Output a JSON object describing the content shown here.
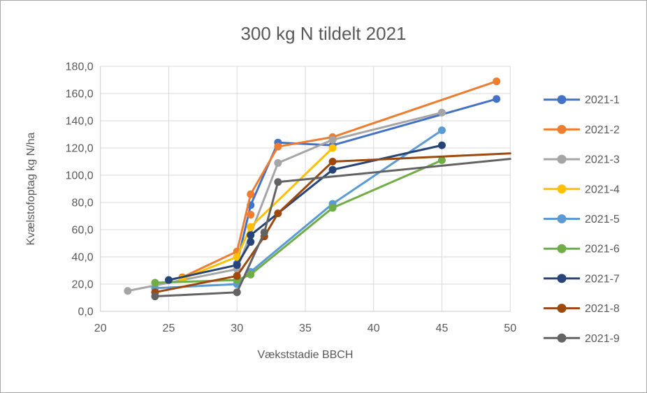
{
  "chart_data": {
    "type": "line",
    "title": "300 kg N tildelt 2021",
    "xlabel": "Vækststadie BBCH",
    "ylabel": "Kvælstofoptag kg N/ha",
    "xlim": [
      20,
      50
    ],
    "ylim": [
      0,
      180
    ],
    "x_ticks": [
      20,
      25,
      30,
      35,
      40,
      45,
      50
    ],
    "x_tick_labels": [
      "20",
      "25",
      "30",
      "35",
      "40",
      "45",
      "50"
    ],
    "y_ticks": [
      0,
      20,
      40,
      60,
      80,
      100,
      120,
      140,
      160,
      180
    ],
    "y_tick_labels": [
      "0,0",
      "20,0",
      "40,0",
      "60,0",
      "80,0",
      "100,0",
      "120,0",
      "140,0",
      "160,0",
      "180,0"
    ],
    "grid": true,
    "legend_position": "right",
    "text_color": "#595959",
    "grid_color": "#d9d9d9",
    "axis_color": "#c9c9c9",
    "series": [
      {
        "name": "2021-1",
        "color": "#4472C4",
        "points": [
          [
            30,
            35
          ],
          [
            31,
            78
          ],
          [
            33,
            124
          ],
          [
            37,
            122
          ],
          [
            49,
            156
          ]
        ]
      },
      {
        "name": "2021-2",
        "color": "#ED7D31",
        "points": [
          [
            26,
            25
          ],
          [
            30,
            44
          ],
          [
            31,
            86
          ],
          [
            33,
            121
          ],
          [
            37,
            128
          ],
          [
            49,
            169
          ]
        ],
        "extra_points": [
          [
            31,
            71
          ]
        ]
      },
      {
        "name": "2021-3",
        "color": "#A5A5A5",
        "points": [
          [
            22,
            15
          ],
          [
            30,
            31
          ],
          [
            33,
            109
          ],
          [
            37,
            126
          ],
          [
            45,
            146
          ]
        ]
      },
      {
        "name": "2021-4",
        "color": "#FFC000",
        "points": [
          [
            26,
            24
          ],
          [
            30,
            40
          ],
          [
            31,
            62
          ],
          [
            37,
            120
          ]
        ]
      },
      {
        "name": "2021-5",
        "color": "#5B9BD5",
        "points": [
          [
            24,
            17
          ],
          [
            30,
            20
          ],
          [
            31,
            29
          ],
          [
            37,
            79
          ],
          [
            45,
            133
          ]
        ]
      },
      {
        "name": "2021-6",
        "color": "#70AD47",
        "points": [
          [
            24,
            21
          ],
          [
            30,
            23
          ],
          [
            31,
            27
          ],
          [
            37,
            76
          ],
          [
            45,
            111
          ]
        ]
      },
      {
        "name": "2021-7",
        "color": "#264478",
        "points": [
          [
            25,
            23
          ],
          [
            30,
            34
          ],
          [
            31,
            51
          ],
          [
            31,
            56
          ],
          [
            37,
            104
          ],
          [
            45,
            122
          ]
        ]
      },
      {
        "name": "2021-8",
        "color": "#9E480E",
        "points": [
          [
            24,
            14
          ],
          [
            30,
            26
          ],
          [
            32,
            55
          ],
          [
            33,
            72
          ],
          [
            37,
            110
          ],
          [
            50,
            116
          ]
        ],
        "end_marker": false
      },
      {
        "name": "2021-9",
        "color": "#636363",
        "points": [
          [
            24,
            11
          ],
          [
            30,
            14
          ],
          [
            32,
            58
          ],
          [
            33,
            95
          ],
          [
            50,
            112
          ]
        ],
        "end_marker": false
      }
    ]
  }
}
